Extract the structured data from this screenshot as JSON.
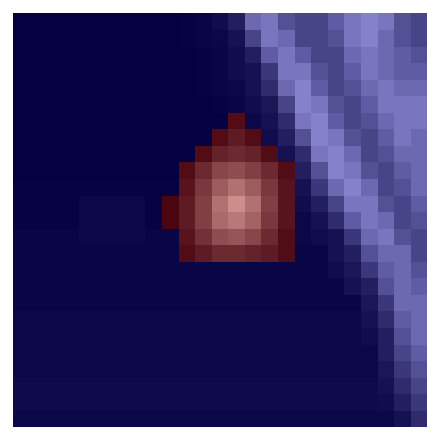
{
  "chart_data": {
    "type": "heatmap",
    "tick_labels": false,
    "values": [
      [
        0.03,
        0.03,
        0.03,
        0.03,
        0.03,
        0.03,
        0.03,
        0.03,
        0.03,
        0.03,
        0.04,
        0.05,
        0.08,
        0.15,
        0.45,
        0.5,
        0.35,
        0.3,
        0.3,
        0.4,
        0.5,
        0.55,
        0.5,
        0.35,
        0.3
      ],
      [
        0.03,
        0.03,
        0.03,
        0.03,
        0.03,
        0.03,
        0.03,
        0.03,
        0.03,
        0.03,
        0.04,
        0.05,
        0.06,
        0.1,
        0.3,
        0.5,
        0.45,
        0.3,
        0.3,
        0.35,
        0.5,
        0.55,
        0.45,
        0.35,
        0.3
      ],
      [
        0.03,
        0.03,
        0.03,
        0.03,
        0.03,
        0.03,
        0.03,
        0.03,
        0.03,
        0.03,
        0.03,
        0.04,
        0.05,
        0.08,
        0.15,
        0.4,
        0.5,
        0.4,
        0.3,
        0.3,
        0.45,
        0.5,
        0.45,
        0.4,
        0.35
      ],
      [
        0.03,
        0.03,
        0.03,
        0.03,
        0.03,
        0.03,
        0.03,
        0.03,
        0.03,
        0.03,
        0.03,
        0.04,
        0.05,
        0.08,
        0.1,
        0.25,
        0.5,
        0.5,
        0.35,
        0.3,
        0.4,
        0.5,
        0.45,
        0.4,
        0.4
      ],
      [
        0.03,
        0.03,
        0.03,
        0.03,
        0.03,
        0.03,
        0.03,
        0.03,
        0.03,
        0.03,
        0.03,
        0.04,
        0.05,
        0.06,
        0.1,
        0.2,
        0.45,
        0.55,
        0.4,
        0.3,
        0.35,
        0.45,
        0.5,
        0.45,
        0.45
      ],
      [
        0.03,
        0.03,
        0.03,
        0.03,
        0.03,
        0.03,
        0.03,
        0.03,
        0.03,
        0.03,
        0.03,
        0.03,
        0.04,
        0.05,
        0.08,
        0.12,
        0.3,
        0.55,
        0.5,
        0.35,
        0.3,
        0.4,
        0.5,
        0.5,
        0.5
      ],
      [
        0.03,
        0.03,
        0.03,
        0.03,
        0.03,
        0.03,
        0.03,
        0.03,
        0.03,
        0.03,
        0.03,
        0.03,
        0.03,
        0.05,
        0.06,
        0.1,
        0.2,
        0.5,
        0.55,
        0.4,
        0.3,
        0.35,
        0.45,
        0.5,
        0.5
      ],
      [
        0.03,
        0.03,
        0.03,
        0.03,
        0.03,
        0.03,
        0.03,
        0.03,
        0.03,
        0.03,
        0.03,
        0.03,
        0.03,
        0.04,
        0.06,
        0.08,
        0.15,
        0.35,
        0.55,
        0.5,
        0.35,
        0.3,
        0.4,
        0.5,
        0.45
      ],
      [
        0.03,
        0.03,
        0.03,
        0.03,
        0.03,
        0.03,
        0.03,
        0.03,
        0.03,
        0.03,
        0.03,
        0.03,
        0.03,
        0.03,
        0.05,
        0.08,
        0.1,
        0.2,
        0.5,
        0.55,
        0.45,
        0.3,
        0.35,
        0.45,
        0.45
      ],
      [
        0.03,
        0.03,
        0.03,
        0.03,
        0.03,
        0.03,
        0.03,
        0.03,
        0.03,
        0.03,
        0.03,
        0.03,
        0.03,
        0.03,
        0.05,
        0.08,
        0.08,
        0.15,
        0.35,
        0.55,
        0.5,
        0.35,
        0.3,
        0.4,
        0.45
      ],
      [
        0.04,
        0.04,
        0.04,
        0.04,
        0.04,
        0.04,
        0.04,
        0.04,
        0.04,
        0.04,
        0.04,
        0.04,
        0.04,
        0.04,
        0.04,
        0.04,
        0.06,
        0.1,
        0.25,
        0.45,
        0.55,
        0.45,
        0.3,
        0.35,
        0.45
      ],
      [
        0.04,
        0.04,
        0.04,
        0.04,
        0.06,
        0.06,
        0.06,
        0.06,
        0.04,
        0.04,
        0.04,
        0.04,
        0.04,
        0.04,
        0.04,
        0.04,
        0.04,
        0.08,
        0.15,
        0.3,
        0.5,
        0.5,
        0.35,
        0.3,
        0.4
      ],
      [
        0.04,
        0.04,
        0.04,
        0.04,
        0.06,
        0.06,
        0.06,
        0.06,
        0.04,
        0.04,
        0.04,
        0.04,
        0.04,
        0.04,
        0.04,
        0.04,
        0.04,
        0.06,
        0.1,
        0.2,
        0.4,
        0.5,
        0.45,
        0.3,
        0.35
      ],
      [
        0.05,
        0.05,
        0.05,
        0.05,
        0.06,
        0.06,
        0.06,
        0.06,
        0.05,
        0.05,
        0.05,
        0.05,
        0.05,
        0.05,
        0.05,
        0.05,
        0.05,
        0.06,
        0.08,
        0.1,
        0.25,
        0.45,
        0.5,
        0.35,
        0.3
      ],
      [
        0.05,
        0.05,
        0.05,
        0.05,
        0.05,
        0.05,
        0.05,
        0.05,
        0.05,
        0.05,
        0.05,
        0.05,
        0.05,
        0.05,
        0.05,
        0.05,
        0.05,
        0.05,
        0.05,
        0.1,
        0.15,
        0.35,
        0.45,
        0.45,
        0.3
      ],
      [
        0.05,
        0.05,
        0.05,
        0.05,
        0.05,
        0.05,
        0.05,
        0.05,
        0.05,
        0.05,
        0.05,
        0.05,
        0.05,
        0.05,
        0.05,
        0.05,
        0.05,
        0.05,
        0.05,
        0.08,
        0.12,
        0.25,
        0.4,
        0.45,
        0.35
      ],
      [
        0.05,
        0.05,
        0.05,
        0.05,
        0.05,
        0.05,
        0.05,
        0.05,
        0.05,
        0.05,
        0.05,
        0.05,
        0.05,
        0.05,
        0.05,
        0.05,
        0.05,
        0.05,
        0.05,
        0.05,
        0.1,
        0.15,
        0.35,
        0.45,
        0.4
      ],
      [
        0.05,
        0.05,
        0.05,
        0.05,
        0.05,
        0.05,
        0.05,
        0.05,
        0.05,
        0.05,
        0.05,
        0.05,
        0.05,
        0.05,
        0.05,
        0.05,
        0.05,
        0.05,
        0.05,
        0.05,
        0.05,
        0.12,
        0.25,
        0.45,
        0.45
      ],
      [
        0.06,
        0.06,
        0.06,
        0.06,
        0.06,
        0.06,
        0.06,
        0.06,
        0.06,
        0.06,
        0.06,
        0.06,
        0.06,
        0.06,
        0.06,
        0.06,
        0.06,
        0.06,
        0.06,
        0.06,
        0.06,
        0.1,
        0.2,
        0.4,
        0.45
      ],
      [
        0.06,
        0.06,
        0.06,
        0.06,
        0.06,
        0.06,
        0.06,
        0.06,
        0.06,
        0.06,
        0.06,
        0.06,
        0.06,
        0.06,
        0.06,
        0.06,
        0.06,
        0.06,
        0.06,
        0.06,
        0.06,
        0.08,
        0.15,
        0.35,
        0.45
      ],
      [
        0.06,
        0.06,
        0.06,
        0.06,
        0.06,
        0.06,
        0.06,
        0.06,
        0.06,
        0.06,
        0.06,
        0.06,
        0.06,
        0.06,
        0.06,
        0.06,
        0.06,
        0.06,
        0.06,
        0.06,
        0.06,
        0.06,
        0.15,
        0.3,
        0.4
      ],
      [
        0.06,
        0.06,
        0.06,
        0.06,
        0.06,
        0.06,
        0.06,
        0.06,
        0.06,
        0.06,
        0.06,
        0.06,
        0.06,
        0.06,
        0.06,
        0.06,
        0.06,
        0.06,
        0.06,
        0.06,
        0.06,
        0.06,
        0.12,
        0.25,
        0.35
      ],
      [
        0.07,
        0.07,
        0.07,
        0.07,
        0.07,
        0.07,
        0.07,
        0.07,
        0.07,
        0.07,
        0.07,
        0.07,
        0.07,
        0.07,
        0.07,
        0.07,
        0.07,
        0.07,
        0.07,
        0.07,
        0.07,
        0.07,
        0.1,
        0.2,
        0.3
      ],
      [
        0.07,
        0.07,
        0.07,
        0.07,
        0.07,
        0.07,
        0.07,
        0.07,
        0.07,
        0.07,
        0.07,
        0.07,
        0.07,
        0.07,
        0.07,
        0.07,
        0.07,
        0.07,
        0.07,
        0.07,
        0.07,
        0.07,
        0.08,
        0.15,
        0.25
      ],
      [
        0.06,
        0.06,
        0.06,
        0.06,
        0.06,
        0.06,
        0.06,
        0.06,
        0.06,
        0.06,
        0.06,
        0.06,
        0.06,
        0.06,
        0.06,
        0.06,
        0.06,
        0.06,
        0.06,
        0.06,
        0.06,
        0.06,
        0.06,
        0.1,
        0.2
      ]
    ],
    "overlay_values": [
      [
        null,
        null,
        null,
        null,
        null,
        null,
        null,
        null,
        null,
        null,
        null,
        null,
        null,
        null,
        null,
        null,
        null,
        null,
        null,
        null,
        null,
        null,
        null,
        null,
        null
      ],
      [
        null,
        null,
        null,
        null,
        null,
        null,
        null,
        null,
        null,
        null,
        null,
        null,
        null,
        null,
        null,
        null,
        null,
        null,
        null,
        null,
        null,
        null,
        null,
        null,
        null
      ],
      [
        null,
        null,
        null,
        null,
        null,
        null,
        null,
        null,
        null,
        null,
        null,
        null,
        null,
        null,
        null,
        null,
        null,
        null,
        null,
        null,
        null,
        null,
        null,
        null,
        null
      ],
      [
        null,
        null,
        null,
        null,
        null,
        null,
        null,
        null,
        null,
        null,
        null,
        null,
        null,
        null,
        null,
        null,
        null,
        null,
        null,
        null,
        null,
        null,
        null,
        null,
        null
      ],
      [
        null,
        null,
        null,
        null,
        null,
        null,
        null,
        null,
        null,
        null,
        null,
        null,
        null,
        null,
        null,
        null,
        null,
        null,
        null,
        null,
        null,
        null,
        null,
        null,
        null
      ],
      [
        null,
        null,
        null,
        null,
        null,
        null,
        null,
        null,
        null,
        null,
        null,
        null,
        null,
        null,
        null,
        null,
        null,
        null,
        null,
        null,
        null,
        null,
        null,
        null,
        null
      ],
      [
        null,
        null,
        null,
        null,
        null,
        null,
        null,
        null,
        null,
        null,
        null,
        null,
        null,
        0.1,
        null,
        null,
        null,
        null,
        null,
        null,
        null,
        null,
        null,
        null,
        null
      ],
      [
        null,
        null,
        null,
        null,
        null,
        null,
        null,
        null,
        null,
        null,
        null,
        null,
        0.1,
        0.2,
        0.1,
        null,
        null,
        null,
        null,
        null,
        null,
        null,
        null,
        null,
        null
      ],
      [
        null,
        null,
        null,
        null,
        null,
        null,
        null,
        null,
        null,
        null,
        null,
        0.1,
        0.25,
        0.3,
        0.25,
        0.1,
        null,
        null,
        null,
        null,
        null,
        null,
        null,
        null,
        null
      ],
      [
        null,
        null,
        null,
        null,
        null,
        null,
        null,
        null,
        null,
        null,
        0.1,
        0.3,
        0.5,
        0.55,
        0.45,
        0.3,
        0.1,
        null,
        null,
        null,
        null,
        null,
        null,
        null,
        null
      ],
      [
        null,
        null,
        null,
        null,
        null,
        null,
        null,
        null,
        null,
        null,
        0.15,
        0.4,
        0.65,
        0.8,
        0.65,
        0.4,
        0.15,
        null,
        null,
        null,
        null,
        null,
        null,
        null,
        null
      ],
      [
        null,
        null,
        null,
        null,
        null,
        null,
        null,
        null,
        null,
        0.05,
        0.2,
        0.45,
        0.8,
        1.0,
        0.8,
        0.45,
        0.15,
        null,
        null,
        null,
        null,
        null,
        null,
        null,
        null
      ],
      [
        null,
        null,
        null,
        null,
        null,
        null,
        null,
        null,
        null,
        0.05,
        0.2,
        0.45,
        0.75,
        0.85,
        0.7,
        0.4,
        0.15,
        null,
        null,
        null,
        null,
        null,
        null,
        null,
        null
      ],
      [
        null,
        null,
        null,
        null,
        null,
        null,
        null,
        null,
        null,
        null,
        0.15,
        0.35,
        0.55,
        0.6,
        0.5,
        0.3,
        0.1,
        null,
        null,
        null,
        null,
        null,
        null,
        null,
        null
      ],
      [
        null,
        null,
        null,
        null,
        null,
        null,
        null,
        null,
        null,
        null,
        0.1,
        0.2,
        0.3,
        0.3,
        0.25,
        0.2,
        0.1,
        null,
        null,
        null,
        null,
        null,
        null,
        null,
        null
      ],
      [
        null,
        null,
        null,
        null,
        null,
        null,
        null,
        null,
        null,
        null,
        null,
        null,
        null,
        null,
        null,
        null,
        null,
        null,
        null,
        null,
        null,
        null,
        null,
        null,
        null
      ],
      [
        null,
        null,
        null,
        null,
        null,
        null,
        null,
        null,
        null,
        null,
        null,
        null,
        null,
        null,
        null,
        null,
        null,
        null,
        null,
        null,
        null,
        null,
        null,
        null,
        null
      ],
      [
        null,
        null,
        null,
        null,
        null,
        null,
        null,
        null,
        null,
        null,
        null,
        null,
        null,
        null,
        null,
        null,
        null,
        null,
        null,
        null,
        null,
        null,
        null,
        null,
        null
      ],
      [
        null,
        null,
        null,
        null,
        null,
        null,
        null,
        null,
        null,
        null,
        null,
        null,
        null,
        null,
        null,
        null,
        null,
        null,
        null,
        null,
        null,
        null,
        null,
        null,
        null
      ],
      [
        null,
        null,
        null,
        null,
        null,
        null,
        null,
        null,
        null,
        null,
        null,
        null,
        null,
        null,
        null,
        null,
        null,
        null,
        null,
        null,
        null,
        null,
        null,
        null,
        null
      ],
      [
        null,
        null,
        null,
        null,
        null,
        null,
        null,
        null,
        null,
        null,
        null,
        null,
        null,
        null,
        null,
        null,
        null,
        null,
        null,
        null,
        null,
        null,
        null,
        null,
        null
      ],
      [
        null,
        null,
        null,
        null,
        null,
        null,
        null,
        null,
        null,
        null,
        null,
        null,
        null,
        null,
        null,
        null,
        null,
        null,
        null,
        null,
        null,
        null,
        null,
        null,
        null
      ],
      [
        null,
        null,
        null,
        null,
        null,
        null,
        null,
        null,
        null,
        null,
        null,
        null,
        null,
        null,
        null,
        null,
        null,
        null,
        null,
        null,
        null,
        null,
        null,
        null,
        null
      ],
      [
        null,
        null,
        null,
        null,
        null,
        null,
        null,
        null,
        null,
        null,
        null,
        null,
        null,
        null,
        null,
        null,
        null,
        null,
        null,
        null,
        null,
        null,
        null,
        null,
        null
      ],
      [
        null,
        null,
        null,
        null,
        null,
        null,
        null,
        null,
        null,
        null,
        null,
        null,
        null,
        null,
        null,
        null,
        null,
        null,
        null,
        null,
        null,
        null,
        null,
        null,
        null
      ]
    ]
  }
}
